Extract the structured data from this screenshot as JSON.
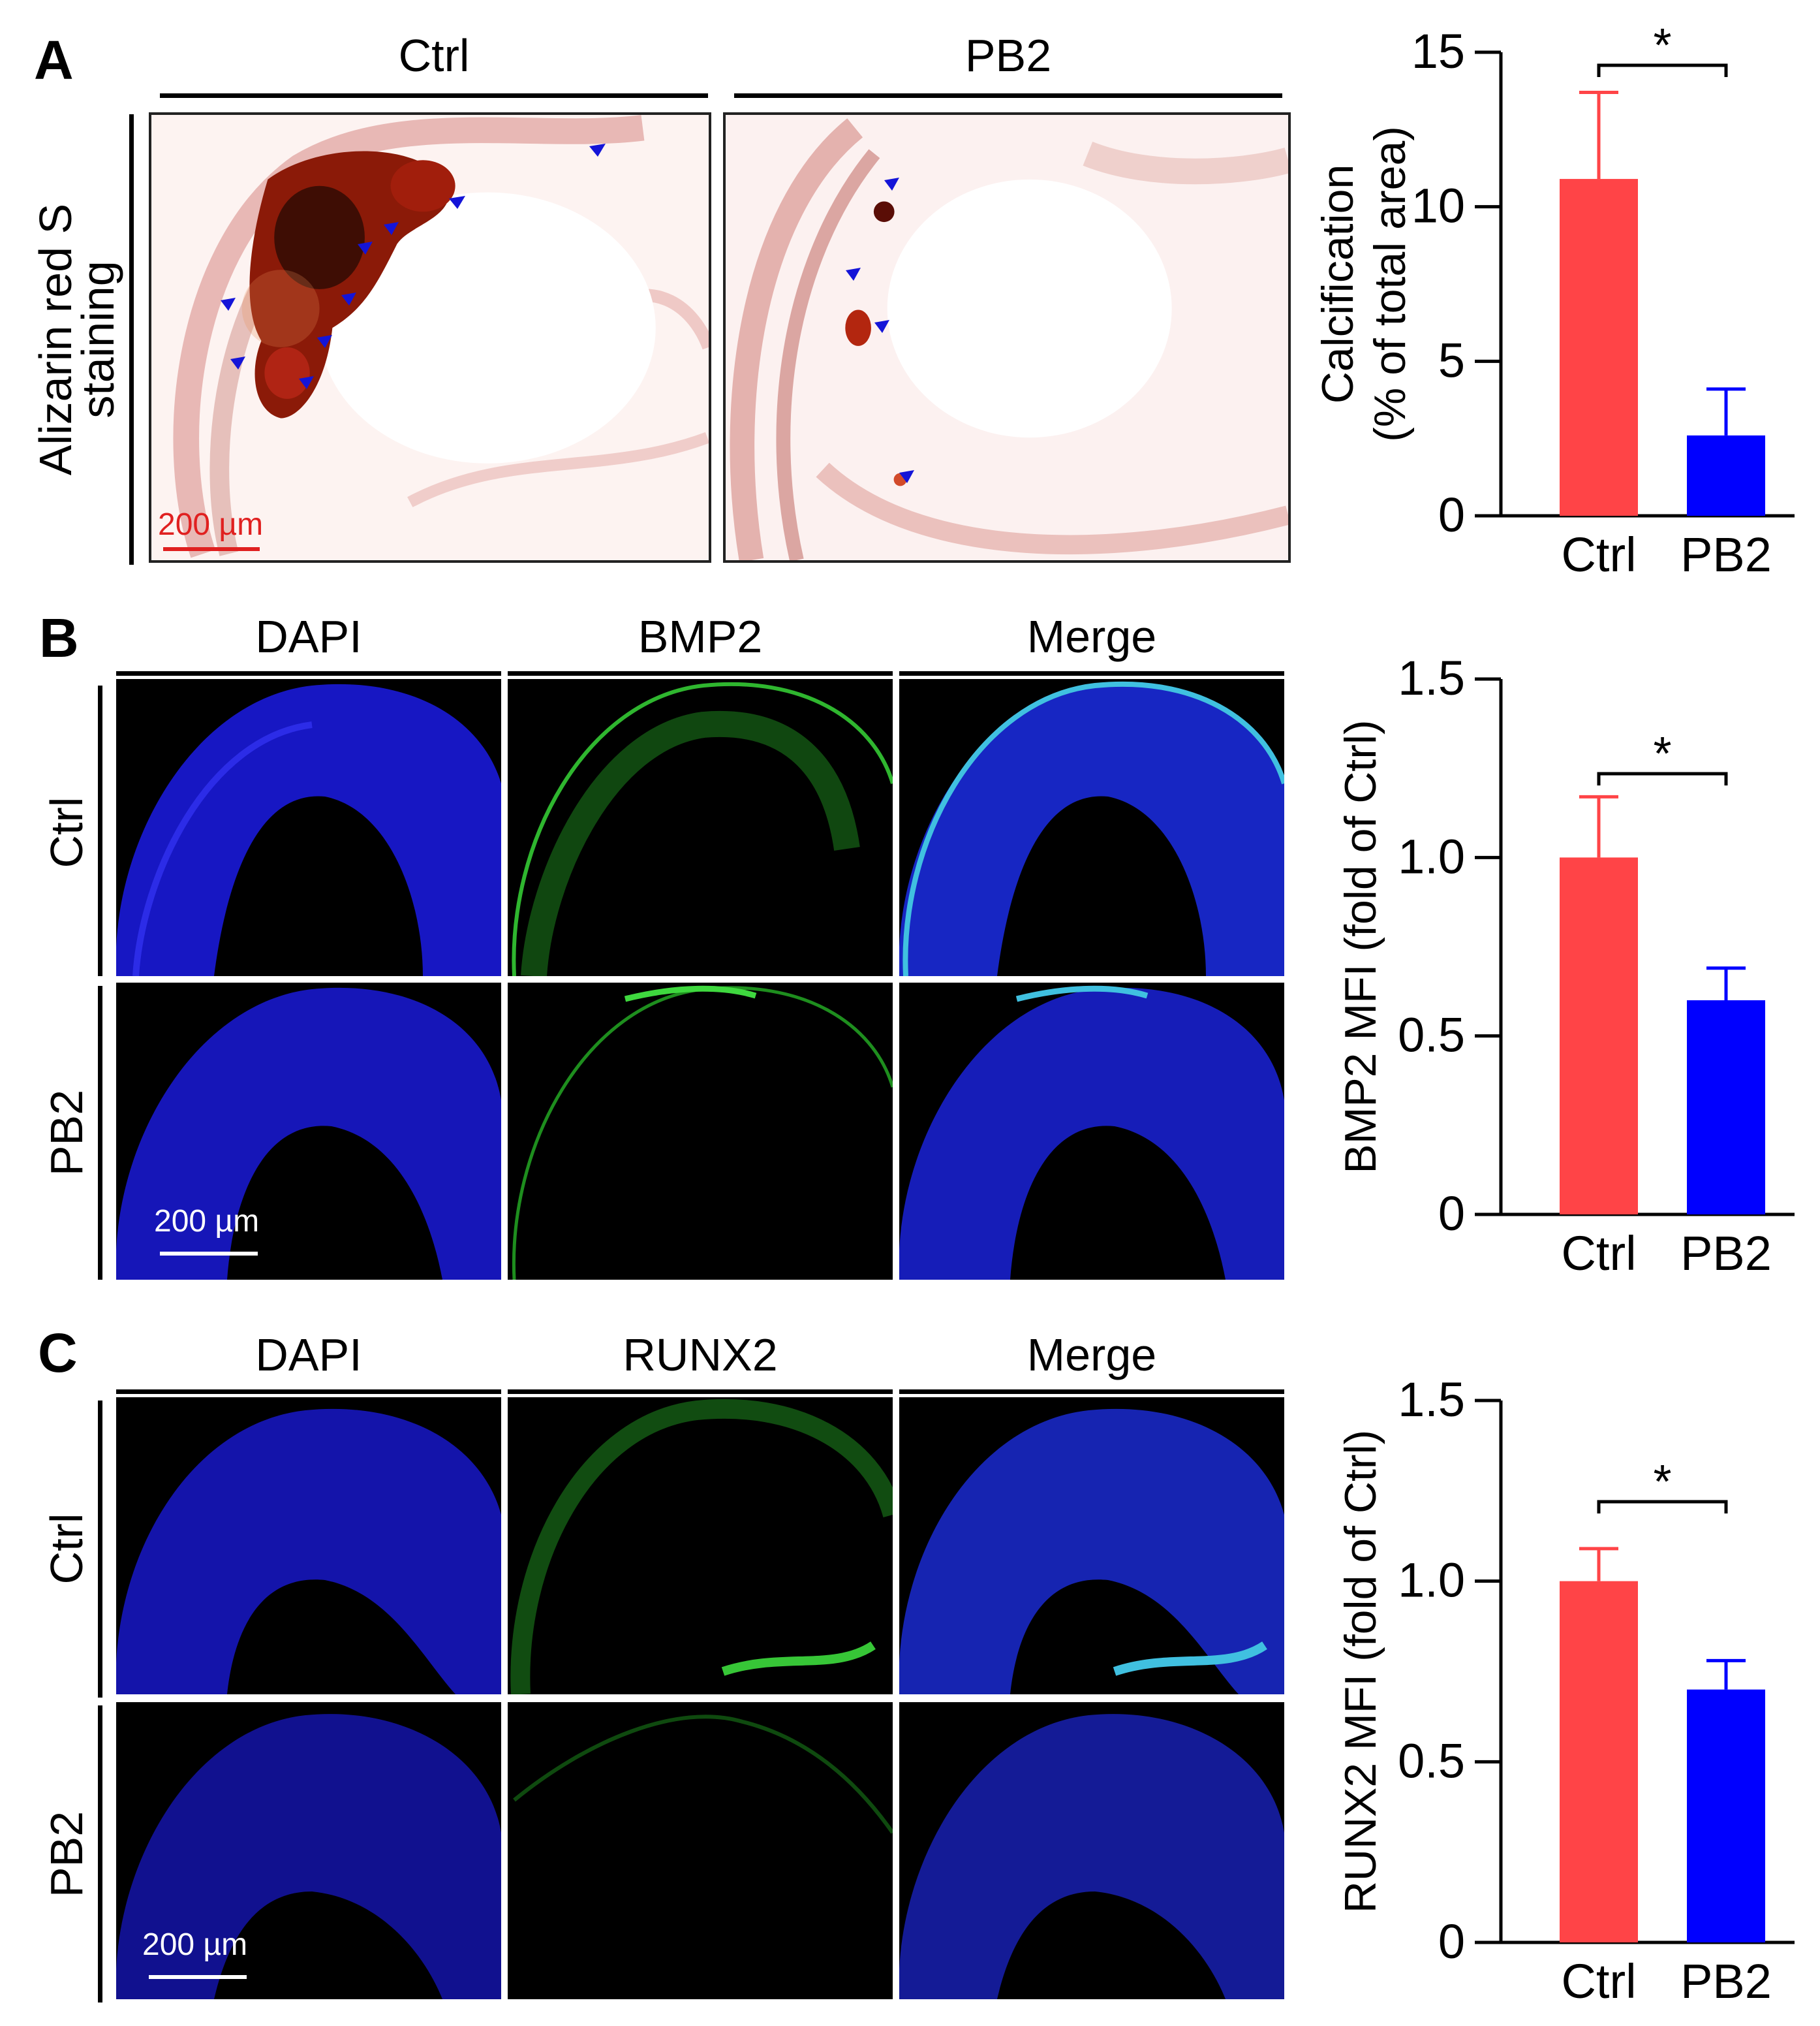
{
  "panelA": {
    "letter": "A",
    "col_headers": [
      "Ctrl",
      "PB2"
    ],
    "row_label_line1": "Alizarin red S",
    "row_label_line2": "staining",
    "scale_bar": "200 µm"
  },
  "panelB": {
    "letter": "B",
    "col_headers": [
      "DAPI",
      "BMP2",
      "Merge"
    ],
    "row_labels": [
      "Ctrl",
      "PB2"
    ],
    "scale_bar": "200 µm"
  },
  "panelC": {
    "letter": "C",
    "col_headers": [
      "DAPI",
      "RUNX2",
      "Merge"
    ],
    "row_labels": [
      "Ctrl",
      "PB2"
    ],
    "scale_bar": "200 µm"
  },
  "colors": {
    "ctrl": "#ff4447",
    "pb2": "#0000ff",
    "stain": "#8b1a08",
    "arrow": "#1414d8"
  },
  "chart_data": [
    {
      "type": "bar",
      "title": "",
      "categories": [
        "Ctrl",
        "PB2"
      ],
      "values": [
        10.9,
        2.6
      ],
      "errors": [
        2.8,
        1.5
      ],
      "ylabel_line1": "Calcification",
      "ylabel_line2": "(% of total area)",
      "ylim": [
        0,
        15
      ],
      "yticks": [
        0,
        5,
        10,
        15
      ],
      "ytick_labels": [
        "0",
        "5",
        "10",
        "15"
      ],
      "significance": "*"
    },
    {
      "type": "bar",
      "title": "",
      "categories": [
        "Ctrl",
        "PB2"
      ],
      "values": [
        1.0,
        0.6
      ],
      "errors": [
        0.17,
        0.09
      ],
      "ylabel_line1": "BMP2 MFI (fold of Ctrl)",
      "ylabel_line2": "",
      "ylim": [
        0,
        1.5
      ],
      "yticks": [
        0,
        0.5,
        1.0,
        1.5
      ],
      "ytick_labels": [
        "0",
        "0.5",
        "1.0",
        "1.5"
      ],
      "significance": "*"
    },
    {
      "type": "bar",
      "title": "",
      "categories": [
        "Ctrl",
        "PB2"
      ],
      "values": [
        1.0,
        0.7
      ],
      "errors": [
        0.09,
        0.08
      ],
      "ylabel_line1": "RUNX2 MFI (fold of Ctrl)",
      "ylabel_line2": "",
      "ylim": [
        0,
        1.5
      ],
      "yticks": [
        0,
        0.5,
        1.0,
        1.5
      ],
      "ytick_labels": [
        "0",
        "0.5",
        "1.0",
        "1.5"
      ],
      "significance": "*"
    }
  ]
}
